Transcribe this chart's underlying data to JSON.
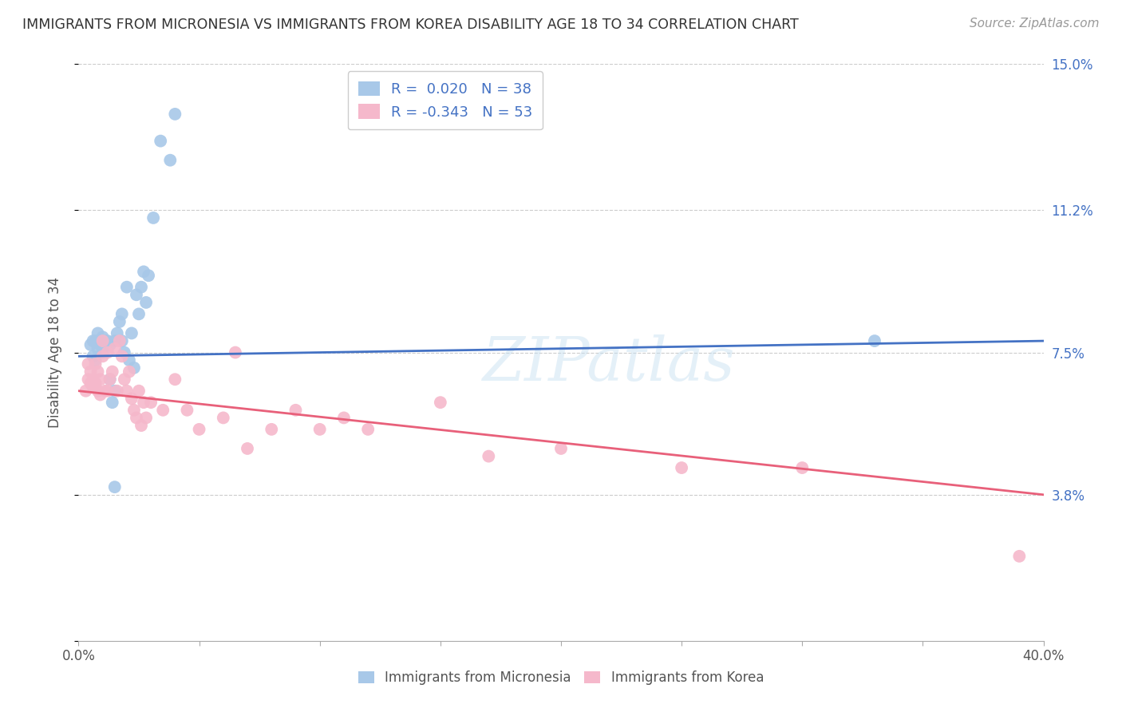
{
  "title": "IMMIGRANTS FROM MICRONESIA VS IMMIGRANTS FROM KOREA DISABILITY AGE 18 TO 34 CORRELATION CHART",
  "source": "Source: ZipAtlas.com",
  "ylabel": "Disability Age 18 to 34",
  "xlim": [
    0.0,
    0.4
  ],
  "ylim": [
    0.0,
    0.15
  ],
  "R_micronesia": 0.02,
  "N_micronesia": 38,
  "R_korea": -0.343,
  "N_korea": 53,
  "micronesia_color": "#a8c8e8",
  "korea_color": "#f5b8cb",
  "micronesia_line_color": "#4472c4",
  "korea_line_color": "#e8607a",
  "watermark": "ZIPatlas",
  "micronesia_x": [
    0.005,
    0.006,
    0.006,
    0.007,
    0.007,
    0.008,
    0.008,
    0.009,
    0.01,
    0.01,
    0.011,
    0.012,
    0.013,
    0.013,
    0.014,
    0.015,
    0.015,
    0.016,
    0.017,
    0.018,
    0.018,
    0.019,
    0.02,
    0.021,
    0.022,
    0.023,
    0.024,
    0.025,
    0.026,
    0.027,
    0.028,
    0.029,
    0.031,
    0.034,
    0.038,
    0.04,
    0.33,
    0.015
  ],
  "micronesia_y": [
    0.077,
    0.078,
    0.074,
    0.078,
    0.073,
    0.08,
    0.076,
    0.077,
    0.079,
    0.075,
    0.078,
    0.078,
    0.077,
    0.068,
    0.062,
    0.078,
    0.065,
    0.08,
    0.083,
    0.085,
    0.078,
    0.075,
    0.092,
    0.073,
    0.08,
    0.071,
    0.09,
    0.085,
    0.092,
    0.096,
    0.088,
    0.095,
    0.11,
    0.13,
    0.125,
    0.137,
    0.078,
    0.04
  ],
  "korea_x": [
    0.003,
    0.004,
    0.004,
    0.005,
    0.005,
    0.006,
    0.006,
    0.007,
    0.007,
    0.008,
    0.008,
    0.009,
    0.009,
    0.01,
    0.01,
    0.011,
    0.012,
    0.012,
    0.013,
    0.014,
    0.015,
    0.016,
    0.017,
    0.018,
    0.019,
    0.02,
    0.021,
    0.022,
    0.023,
    0.024,
    0.025,
    0.026,
    0.027,
    0.028,
    0.03,
    0.035,
    0.04,
    0.045,
    0.05,
    0.06,
    0.065,
    0.07,
    0.08,
    0.09,
    0.1,
    0.11,
    0.12,
    0.15,
    0.17,
    0.2,
    0.25,
    0.3,
    0.39
  ],
  "korea_y": [
    0.065,
    0.068,
    0.072,
    0.07,
    0.067,
    0.066,
    0.068,
    0.072,
    0.067,
    0.07,
    0.065,
    0.068,
    0.064,
    0.078,
    0.074,
    0.065,
    0.075,
    0.065,
    0.068,
    0.07,
    0.076,
    0.065,
    0.078,
    0.074,
    0.068,
    0.065,
    0.07,
    0.063,
    0.06,
    0.058,
    0.065,
    0.056,
    0.062,
    0.058,
    0.062,
    0.06,
    0.068,
    0.06,
    0.055,
    0.058,
    0.075,
    0.05,
    0.055,
    0.06,
    0.055,
    0.058,
    0.055,
    0.062,
    0.048,
    0.05,
    0.045,
    0.045,
    0.022
  ],
  "blue_line_start_y": 0.074,
  "blue_line_end_y": 0.078,
  "pink_line_start_y": 0.065,
  "pink_line_end_y": 0.038
}
